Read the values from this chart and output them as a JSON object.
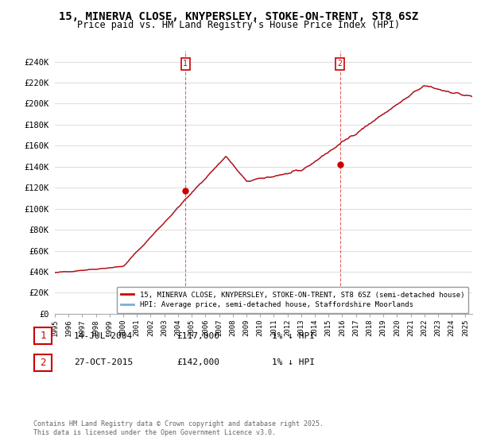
{
  "title": "15, MINERVA CLOSE, KNYPERSLEY, STOKE-ON-TRENT, ST8 6SZ",
  "subtitle": "Price paid vs. HM Land Registry's House Price Index (HPI)",
  "ylim": [
    0,
    250000
  ],
  "yticks": [
    0,
    20000,
    40000,
    60000,
    80000,
    100000,
    120000,
    140000,
    160000,
    180000,
    200000,
    220000,
    240000
  ],
  "ytick_labels": [
    "£0",
    "£20K",
    "£40K",
    "£60K",
    "£80K",
    "£100K",
    "£120K",
    "£140K",
    "£160K",
    "£180K",
    "£200K",
    "£220K",
    "£240K"
  ],
  "hpi_color": "#7bafd4",
  "price_color": "#cc0000",
  "background_color": "#ffffff",
  "grid_color": "#e0e0e0",
  "legend_entry1": "15, MINERVA CLOSE, KNYPERSLEY, STOKE-ON-TRENT, ST8 6SZ (semi-detached house)",
  "legend_entry2": "HPI: Average price, semi-detached house, Staffordshire Moorlands",
  "annotation1_date": "14-JUL-2004",
  "annotation1_price": "£117,000",
  "annotation1_hpi": "1% ↓ HPI",
  "annotation2_date": "27-OCT-2015",
  "annotation2_price": "£142,000",
  "annotation2_hpi": "1% ↓ HPI",
  "footer": "Contains HM Land Registry data © Crown copyright and database right 2025.\nThis data is licensed under the Open Government Licence v3.0.",
  "sale1_year": 2004.54,
  "sale1_price": 117000,
  "sale2_year": 2015.83,
  "sale2_price": 142000
}
